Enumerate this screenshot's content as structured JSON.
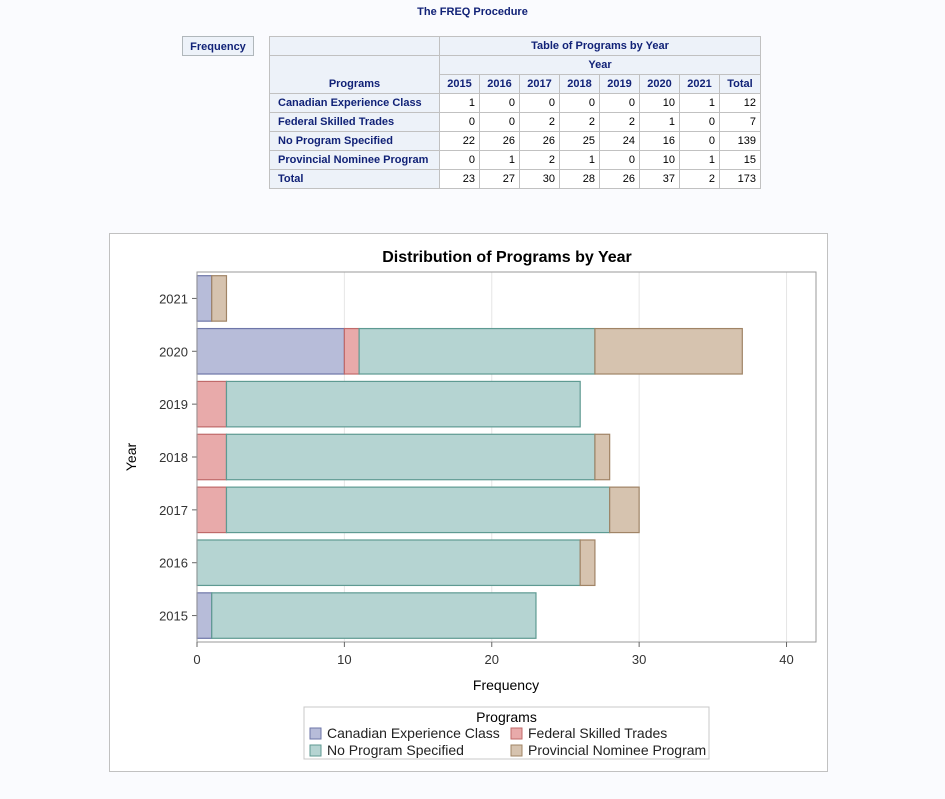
{
  "procedure_title": "The FREQ Procedure",
  "frequency_label": "Frequency",
  "table": {
    "title": "Table of Programs by Year",
    "col_group": "Year",
    "row_header": "Programs",
    "columns": [
      "2015",
      "2016",
      "2017",
      "2018",
      "2019",
      "2020",
      "2021",
      "Total"
    ],
    "rows": [
      {
        "label": "Canadian Experience Class",
        "values": [
          "1",
          "0",
          "0",
          "0",
          "0",
          "10",
          "1",
          "12"
        ]
      },
      {
        "label": "Federal Skilled Trades",
        "values": [
          "0",
          "0",
          "2",
          "2",
          "2",
          "1",
          "0",
          "7"
        ]
      },
      {
        "label": "No Program Specified",
        "values": [
          "22",
          "26",
          "26",
          "25",
          "24",
          "16",
          "0",
          "139"
        ]
      },
      {
        "label": "Provincial Nominee Program",
        "values": [
          "0",
          "1",
          "2",
          "1",
          "0",
          "10",
          "1",
          "15"
        ]
      },
      {
        "label": "Total",
        "values": [
          "23",
          "27",
          "30",
          "28",
          "26",
          "37",
          "2",
          "173"
        ]
      }
    ]
  },
  "chart_data": {
    "type": "bar",
    "orientation": "horizontal",
    "stacked": true,
    "title": "Distribution of Programs by Year",
    "xlabel": "Frequency",
    "ylabel": "Year",
    "xlim": [
      0,
      42
    ],
    "xticks": [
      0,
      10,
      20,
      30,
      40
    ],
    "grid": true,
    "categories": [
      "2021",
      "2020",
      "2019",
      "2018",
      "2017",
      "2016",
      "2015"
    ],
    "legend_title": "Programs",
    "legend_position": "bottom",
    "series": [
      {
        "name": "Canadian Experience Class",
        "color": "#b7bcd9",
        "stroke": "#6e76a8",
        "values": [
          1,
          10,
          0,
          0,
          0,
          0,
          1
        ]
      },
      {
        "name": "Federal Skilled Trades",
        "color": "#e8aaaa",
        "stroke": "#c06a6a",
        "values": [
          0,
          1,
          2,
          2,
          2,
          0,
          0
        ]
      },
      {
        "name": "No Program Specified",
        "color": "#b5d4d2",
        "stroke": "#5e9a92",
        "values": [
          0,
          16,
          24,
          25,
          26,
          26,
          22
        ]
      },
      {
        "name": "Provincial Nominee Program",
        "color": "#d6c3af",
        "stroke": "#a08466",
        "values": [
          1,
          10,
          0,
          1,
          2,
          1,
          0
        ]
      }
    ]
  }
}
